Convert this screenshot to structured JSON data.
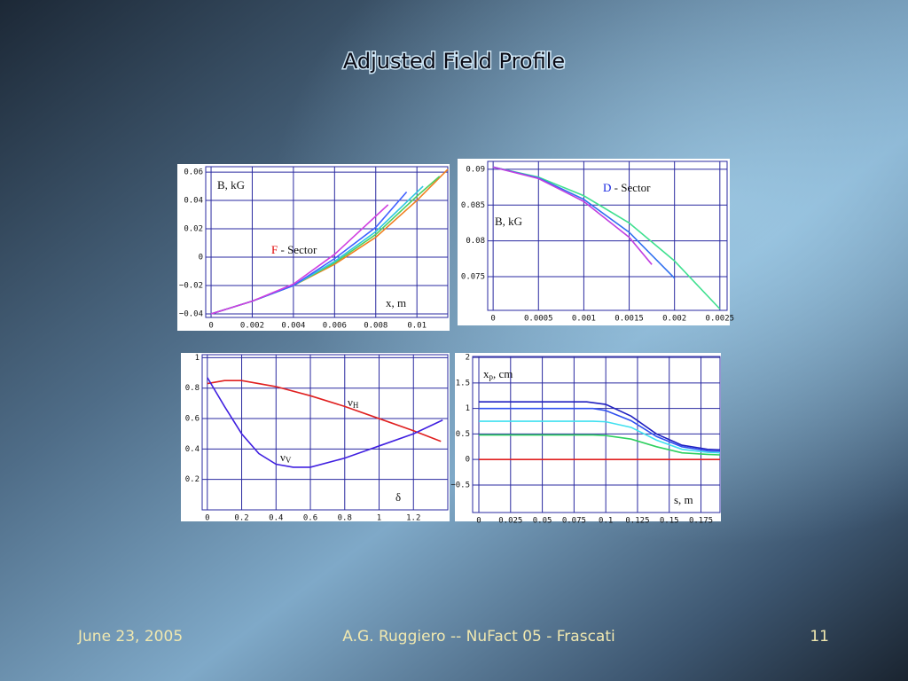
{
  "slide": {
    "title": "Adjusted Field Profile"
  },
  "footer": {
    "date": "June 23, 2005",
    "author": "A.G. Ruggiero -- NuFact 05 - Frascati",
    "page": "11"
  },
  "chart_data": [
    {
      "type": "line",
      "xlim": [
        -0.00026,
        0.0115
      ],
      "ylim": [
        -0.0425,
        0.0638
      ],
      "xticks": [
        0,
        0.002,
        0.004,
        0.006,
        0.008,
        0.01
      ],
      "yticks": [
        {
          "value": -0.04,
          "label": "−0.04"
        },
        {
          "value": -0.02,
          "label": "−0.02"
        },
        0,
        0.02,
        0.04,
        0.06
      ],
      "grid": true,
      "annotations": [
        {
          "parts": [
            {
              "text": "B, kG"
            }
          ]
        },
        {
          "parts": [
            {
              "text": "F",
              "color": "#e00000"
            },
            {
              "text": " - Sector"
            }
          ]
        },
        {
          "parts": [
            {
              "text": "x, m"
            }
          ]
        }
      ],
      "series": [
        {
          "color": "#f08020",
          "x": [
            0,
            0.002,
            0.004,
            0.006,
            0.008,
            0.01,
            0.0115
          ],
          "values": [
            -0.04,
            -0.031,
            -0.02,
            -0.005,
            0.014,
            0.04,
            0.062
          ]
        },
        {
          "color": "#50d060",
          "x": [
            0,
            0.002,
            0.004,
            0.006,
            0.008,
            0.01,
            0.0111
          ],
          "values": [
            -0.04,
            -0.031,
            -0.02,
            -0.004,
            0.016,
            0.043,
            0.057
          ]
        },
        {
          "color": "#30c8e0",
          "x": [
            0,
            0.002,
            0.004,
            0.006,
            0.008,
            0.0103
          ],
          "values": [
            -0.04,
            -0.031,
            -0.02,
            -0.003,
            0.018,
            0.05
          ]
        },
        {
          "color": "#4060ff",
          "x": [
            0,
            0.002,
            0.004,
            0.006,
            0.008,
            0.0095
          ],
          "values": [
            -0.04,
            -0.031,
            -0.02,
            -0.001,
            0.021,
            0.046
          ]
        },
        {
          "color": "#d040e0",
          "x": [
            0,
            0.002,
            0.004,
            0.006,
            0.0086
          ],
          "values": [
            -0.04,
            -0.031,
            -0.019,
            0.002,
            0.037
          ]
        }
      ]
    },
    {
      "type": "line",
      "xlim": [
        -6e-05,
        0.00258
      ],
      "ylim": [
        0.0703,
        0.0911
      ],
      "xticks": [
        0,
        0.0005,
        0.001,
        0.0015,
        0.002,
        0.0025
      ],
      "yticks": [
        0.075,
        0.08,
        0.085,
        0.09
      ],
      "grid": true,
      "annotations": [
        {
          "parts": [
            {
              "text": "B, kG"
            }
          ]
        },
        {
          "parts": [
            {
              "text": "D",
              "color": "#1020e0"
            },
            {
              "text": " - Sector"
            }
          ]
        }
      ],
      "series": [
        {
          "color": "#40e090",
          "x": [
            0,
            0.0005,
            0.001,
            0.0015,
            0.002,
            0.0025
          ],
          "values": [
            0.0903,
            0.0889,
            0.0863,
            0.0825,
            0.0772,
            0.0705
          ]
        },
        {
          "color": "#3070f0",
          "x": [
            0,
            0.0005,
            0.001,
            0.0015,
            0.002
          ],
          "values": [
            0.0903,
            0.0888,
            0.0858,
            0.0812,
            0.0748
          ]
        },
        {
          "color": "#c040e0",
          "x": [
            0,
            0.0005,
            0.001,
            0.0015,
            0.00175
          ],
          "values": [
            0.0903,
            0.0887,
            0.0855,
            0.0805,
            0.0767
          ]
        }
      ]
    },
    {
      "type": "line",
      "xlim": [
        -0.03,
        1.4
      ],
      "ylim": [
        0,
        1.02
      ],
      "xticks": [
        0,
        0.2,
        0.4,
        0.6,
        0.8,
        1,
        1.2
      ],
      "yticks": [
        0.2,
        0.4,
        0.6,
        0.8,
        1
      ],
      "grid": true,
      "annotations": [
        {
          "parts": [
            {
              "text": "ν"
            },
            {
              "text": "H",
              "sub": true
            }
          ]
        },
        {
          "parts": [
            {
              "text": "ν"
            },
            {
              "text": "V",
              "sub": true
            }
          ]
        },
        {
          "parts": [
            {
              "text": "δ"
            }
          ]
        }
      ],
      "series": [
        {
          "color": "#e02020",
          "x": [
            0,
            0.1,
            0.2,
            0.4,
            0.6,
            0.8,
            1.0,
            1.2,
            1.36
          ],
          "values": [
            0.83,
            0.85,
            0.85,
            0.81,
            0.75,
            0.68,
            0.6,
            0.52,
            0.45
          ]
        },
        {
          "color": "#4020e0",
          "x": [
            0,
            0.1,
            0.2,
            0.3,
            0.4,
            0.5,
            0.6,
            0.8,
            1.0,
            1.2,
            1.37
          ],
          "values": [
            0.87,
            0.68,
            0.5,
            0.37,
            0.3,
            0.28,
            0.28,
            0.34,
            0.42,
            0.5,
            0.59
          ]
        }
      ]
    },
    {
      "type": "line",
      "xlim": [
        -0.0049,
        0.19
      ],
      "ylim": [
        -1.04,
        2.02
      ],
      "xticks": [
        0,
        0.025,
        0.05,
        0.075,
        0.1,
        0.125,
        0.15,
        0.175
      ],
      "yticks": [
        {
          "value": -0.5,
          "label": "−0.5"
        },
        0,
        0.5,
        1,
        1.5,
        2
      ],
      "grid": true,
      "annotations": [
        {
          "parts": [
            {
              "text": "x"
            },
            {
              "text": "p",
              "sub": true
            },
            {
              "text": ", cm"
            }
          ]
        },
        {
          "parts": [
            {
              "text": "s, m"
            }
          ]
        }
      ],
      "series": [
        {
          "color": "#2020c0",
          "x": [
            0,
            0.085,
            0.1,
            0.12,
            0.14,
            0.16,
            0.18,
            0.19
          ],
          "values": [
            1.13,
            1.13,
            1.08,
            0.85,
            0.5,
            0.28,
            0.2,
            0.19
          ]
        },
        {
          "color": "#3050f0",
          "x": [
            0,
            0.09,
            0.1,
            0.12,
            0.14,
            0.16,
            0.18,
            0.19
          ],
          "values": [
            1.0,
            1.0,
            0.96,
            0.76,
            0.45,
            0.25,
            0.17,
            0.16
          ]
        },
        {
          "color": "#40e0f0",
          "x": [
            0,
            0.09,
            0.1,
            0.12,
            0.14,
            0.16,
            0.18,
            0.19
          ],
          "values": [
            0.75,
            0.75,
            0.74,
            0.63,
            0.38,
            0.2,
            0.14,
            0.13
          ]
        },
        {
          "color": "#30d060",
          "x": [
            0,
            0.09,
            0.1,
            0.12,
            0.14,
            0.16,
            0.18,
            0.19
          ],
          "values": [
            0.48,
            0.48,
            0.47,
            0.4,
            0.25,
            0.13,
            0.1,
            0.09
          ]
        },
        {
          "color": "#e02020",
          "x": [
            0,
            0.19
          ],
          "values": [
            0,
            0
          ]
        }
      ]
    }
  ]
}
